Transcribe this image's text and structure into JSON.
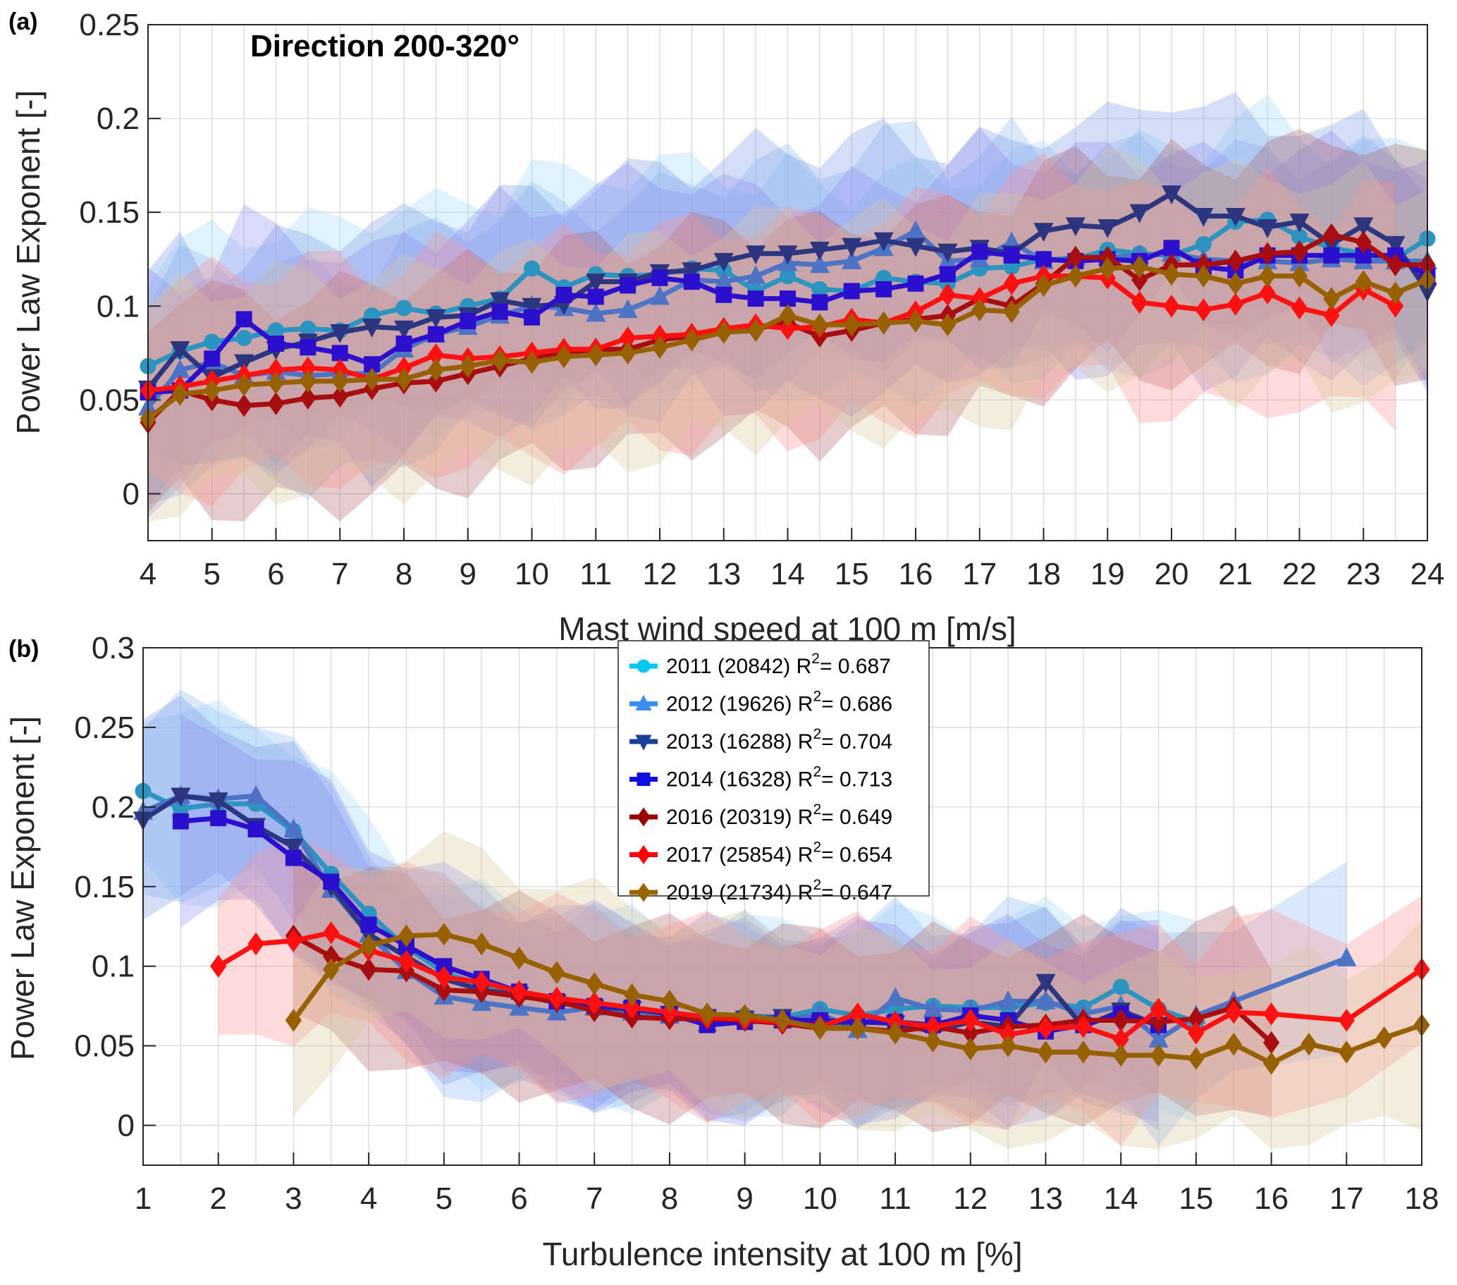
{
  "figure": {
    "panels": [
      {
        "id": "a",
        "label": "(a)"
      },
      {
        "id": "b",
        "label": "(b)"
      }
    ]
  },
  "chart_data": [
    {
      "type": "line",
      "panel_label": "(a)",
      "annotation": "Direction 200-320°",
      "title": "",
      "xlabel": "Mast wind speed at 100 m [m/s]",
      "ylabel": "Power Law Exponent [-]",
      "xlim": [
        4,
        24
      ],
      "ylim": [
        -0.025,
        0.25
      ],
      "xticks": [
        4,
        5,
        6,
        7,
        8,
        9,
        10,
        11,
        12,
        13,
        14,
        15,
        16,
        17,
        18,
        19,
        20,
        21,
        22,
        23,
        24
      ],
      "yticks": [
        0,
        0.05,
        0.1,
        0.15,
        0.2,
        0.25
      ],
      "ytick_labels": [
        "0",
        "0.05",
        "0.1",
        "0.15",
        "0.2",
        "0.25"
      ],
      "grid": true,
      "shaded_bands": true,
      "x": [
        4,
        4.5,
        5,
        5.5,
        6,
        6.5,
        7,
        7.5,
        8,
        8.5,
        9,
        9.5,
        10,
        10.5,
        11,
        11.5,
        12,
        12.5,
        13,
        13.5,
        14,
        14.5,
        15,
        15.5,
        16,
        16.5,
        17,
        17.5,
        18,
        18.5,
        19,
        19.5,
        20,
        20.5,
        21,
        21.5,
        22,
        22.5,
        23,
        23.5,
        24
      ],
      "series": [
        {
          "name": "2011",
          "color": "#2b94c0",
          "marker": "circle",
          "values": [
            0.068,
            0.076,
            0.081,
            0.083,
            0.087,
            0.088,
            0.087,
            0.095,
            0.099,
            0.096,
            0.1,
            0.104,
            0.12,
            0.11,
            0.117,
            0.116,
            0.117,
            0.12,
            0.119,
            0.108,
            0.116,
            0.109,
            0.108,
            0.115,
            0.113,
            0.112,
            0.12,
            0.121,
            0.125,
            0.125,
            0.13,
            0.128,
            0.127,
            0.133,
            0.145,
            0.146,
            0.137,
            0.131,
            0.128,
            0.125,
            0.136
          ]
        },
        {
          "name": "2012",
          "color": "#4d73c6",
          "marker": "triangle-up",
          "values": [
            0.046,
            0.066,
            0.07,
            0.063,
            0.065,
            0.063,
            0.064,
            0.064,
            0.077,
            0.085,
            0.089,
            0.095,
            0.1,
            0.099,
            0.096,
            0.098,
            0.105,
            0.114,
            0.113,
            0.116,
            0.123,
            0.122,
            0.124,
            0.131,
            0.14,
            0.124,
            0.125,
            0.134,
            0.124,
            0.126,
            0.126,
            0.127,
            0.128,
            0.125,
            0.124,
            0.124,
            0.123,
            0.125,
            0.124,
            0.124,
            0.124
          ]
        },
        {
          "name": "2013",
          "color": "#2c3580",
          "marker": "triangle-down",
          "values": [
            0.056,
            0.077,
            0.062,
            0.07,
            0.077,
            0.081,
            0.086,
            0.089,
            0.088,
            0.094,
            0.095,
            0.103,
            0.1,
            0.101,
            0.113,
            0.113,
            0.118,
            0.119,
            0.124,
            0.128,
            0.128,
            0.13,
            0.132,
            0.135,
            0.132,
            0.129,
            0.131,
            0.128,
            0.14,
            0.143,
            0.142,
            0.15,
            0.16,
            0.148,
            0.148,
            0.142,
            0.145,
            0.133,
            0.143,
            0.133,
            0.108
          ]
        },
        {
          "name": "2014",
          "color": "#2c0fcc",
          "marker": "square",
          "values": [
            0.054,
            0.055,
            0.072,
            0.093,
            0.08,
            0.078,
            0.075,
            0.069,
            0.08,
            0.085,
            0.092,
            0.097,
            0.094,
            0.106,
            0.105,
            0.111,
            0.115,
            0.113,
            0.106,
            0.104,
            0.104,
            0.102,
            0.108,
            0.109,
            0.112,
            0.117,
            0.129,
            0.127,
            0.125,
            0.124,
            0.125,
            0.124,
            0.131,
            0.121,
            0.119,
            0.127,
            0.127,
            0.127,
            0.127,
            0.127,
            0.116
          ]
        },
        {
          "name": "2016",
          "color": "#a80d10",
          "marker": "diamond",
          "values": [
            0.038,
            0.055,
            0.05,
            0.047,
            0.048,
            0.051,
            0.052,
            0.056,
            0.059,
            0.06,
            0.064,
            0.068,
            0.072,
            0.075,
            0.077,
            0.077,
            0.082,
            0.084,
            0.088,
            0.088,
            0.091,
            0.084,
            0.087,
            0.091,
            0.093,
            0.095,
            0.104,
            0.1,
            0.112,
            0.126,
            0.126,
            0.114,
            0.122,
            0.122,
            0.124,
            0.128,
            0.129,
            0.138,
            0.134,
            0.122,
            0.122
          ]
        },
        {
          "name": "2017",
          "color": "#ff1111",
          "marker": "diamond",
          "values": [
            0.055,
            0.057,
            0.06,
            0.063,
            0.066,
            0.067,
            0.066,
            0.061,
            0.067,
            0.074,
            0.072,
            0.073,
            0.075,
            0.077,
            0.077,
            0.083,
            0.084,
            0.085,
            0.088,
            0.09,
            0.088,
            0.089,
            0.093,
            0.091,
            0.097,
            0.106,
            0.104,
            0.112,
            0.116,
            0.116,
            0.115,
            0.102,
            0.1,
            0.098,
            0.101,
            0.107,
            0.099,
            0.095,
            0.109,
            0.1,
            null
          ]
        },
        {
          "name": "2019",
          "color": "#976000",
          "marker": "diamond",
          "values": [
            0.04,
            0.053,
            0.055,
            0.058,
            0.059,
            0.06,
            0.06,
            0.061,
            0.061,
            0.066,
            0.068,
            0.071,
            0.07,
            0.073,
            0.074,
            0.075,
            0.078,
            0.082,
            0.086,
            0.087,
            0.095,
            0.09,
            0.09,
            0.091,
            0.092,
            0.09,
            0.098,
            0.097,
            0.111,
            0.116,
            0.12,
            0.121,
            0.117,
            0.116,
            0.112,
            0.116,
            0.116,
            0.104,
            0.113,
            0.107,
            0.114
          ]
        }
      ]
    },
    {
      "type": "line",
      "panel_label": "(b)",
      "title": "",
      "xlabel": "Turbulence intensity at 100 m [%]",
      "ylabel": "Power Law Exponent [-]",
      "xlim": [
        1,
        18
      ],
      "ylim": [
        -0.025,
        0.3
      ],
      "xticks": [
        1,
        2,
        3,
        4,
        5,
        6,
        7,
        8,
        9,
        10,
        11,
        12,
        13,
        14,
        15,
        16,
        17,
        18
      ],
      "yticks": [
        0,
        0.05,
        0.1,
        0.15,
        0.2,
        0.25,
        0.3
      ],
      "ytick_labels": [
        "0",
        "0.05",
        "0.1",
        "0.15",
        "0.2",
        "0.25",
        "0.3"
      ],
      "grid": true,
      "shaded_bands": true,
      "legend_position": "top-center",
      "legend": [
        {
          "year": "2011",
          "count": "(20842)",
          "r2_prefix": "R",
          "r2_sup": "2",
          "r2_value": "= 0.687"
        },
        {
          "year": "2012",
          "count": "(19626)",
          "r2_prefix": "R",
          "r2_sup": "2",
          "r2_value": "= 0.686"
        },
        {
          "year": "2013",
          "count": "(16288)",
          "r2_prefix": "R",
          "r2_sup": "2",
          "r2_value": "= 0.704"
        },
        {
          "year": "2014",
          "count": "(16328)",
          "r2_prefix": "R",
          "r2_sup": "2",
          "r2_value": "= 0.713"
        },
        {
          "year": "2016",
          "count": "(20319)",
          "r2_prefix": "R",
          "r2_sup": "2",
          "r2_value": "= 0.649"
        },
        {
          "year": "2017",
          "count": "(25854)",
          "r2_prefix": "R",
          "r2_sup": "2",
          "r2_value": "= 0.654"
        },
        {
          "year": "2019",
          "count": "(21734)",
          "r2_prefix": "R",
          "r2_sup": "2",
          "r2_value": "= 0.647"
        }
      ],
      "legend_colors": [
        "#00c8f0",
        "#3b8ef0",
        "#1a3f99",
        "#1010e0",
        "#990000",
        "#ff0000",
        "#9a6400"
      ],
      "series": [
        {
          "name": "2011",
          "color": "#2b94c0",
          "marker": "circle",
          "x": [
            1,
            1.5,
            2,
            2.5,
            3,
            3.5,
            4,
            4.5,
            5,
            5.5,
            6,
            6.5,
            7,
            7.5,
            8,
            8.5,
            9,
            9.5,
            10,
            10.5,
            11,
            11.5,
            12,
            12.5,
            13,
            13.5,
            14,
            14.5,
            15
          ],
          "values": [
            0.21,
            0.199,
            0.202,
            0.202,
            0.185,
            0.158,
            0.133,
            0.112,
            0.096,
            0.088,
            0.082,
            0.078,
            0.074,
            0.073,
            0.07,
            0.068,
            0.069,
            0.068,
            0.073,
            0.069,
            0.073,
            0.075,
            0.074,
            0.074,
            0.077,
            0.074,
            0.087,
            0.073,
            0.065
          ]
        },
        {
          "name": "2012",
          "color": "#4d73c6",
          "marker": "triangle-up",
          "x": [
            1,
            1.5,
            2,
            2.5,
            3,
            3.5,
            4,
            4.5,
            5,
            5.5,
            6,
            6.5,
            7,
            7.5,
            8,
            8.5,
            9,
            9.5,
            10,
            10.5,
            11,
            11.5,
            12,
            12.5,
            13,
            13.5,
            14,
            14.5,
            15,
            15.5,
            17
          ],
          "values": [
            0.197,
            0.207,
            0.205,
            0.207,
            0.186,
            0.148,
            0.12,
            0.097,
            0.081,
            0.077,
            0.074,
            0.071,
            0.074,
            0.071,
            0.069,
            0.064,
            0.069,
            0.066,
            0.07,
            0.06,
            0.08,
            0.073,
            0.072,
            0.078,
            0.078,
            0.07,
            0.075,
            0.054,
            0.069,
            0.078,
            0.105
          ]
        },
        {
          "name": "2013",
          "color": "#2c3580",
          "marker": "triangle-down",
          "x": [
            1,
            1.5,
            2,
            2.5,
            3,
            3.5,
            4,
            4.5,
            5,
            5.5,
            6,
            6.5,
            7,
            7.5,
            8,
            8.5,
            9,
            9.5,
            10,
            10.5,
            11,
            11.5,
            12,
            12.5,
            13,
            13.5,
            14,
            14.5
          ],
          "values": [
            0.192,
            0.207,
            0.204,
            0.188,
            0.175,
            0.15,
            0.12,
            0.106,
            0.092,
            0.085,
            0.082,
            0.077,
            0.074,
            0.073,
            0.07,
            0.068,
            0.067,
            0.068,
            0.064,
            0.065,
            0.064,
            0.059,
            0.065,
            0.062,
            0.09,
            0.062,
            0.072,
            0.063
          ]
        },
        {
          "name": "2014",
          "color": "#2c0fcc",
          "marker": "square",
          "x": [
            1.5,
            2,
            2.5,
            3,
            3.5,
            4,
            4.5,
            5,
            5.5,
            6,
            6.5,
            7,
            7.5,
            8,
            8.5,
            9,
            9.5,
            10,
            10.5,
            11,
            11.5,
            12,
            12.5,
            13,
            13.5,
            14,
            14.5
          ],
          "values": [
            0.191,
            0.193,
            0.186,
            0.168,
            0.153,
            0.126,
            0.113,
            0.1,
            0.092,
            0.084,
            0.078,
            0.075,
            0.074,
            0.07,
            0.063,
            0.065,
            0.066,
            0.066,
            0.065,
            0.065,
            0.063,
            0.069,
            0.066,
            0.059,
            0.063,
            0.07,
            0.063
          ]
        },
        {
          "name": "2016",
          "color": "#a80d10",
          "marker": "diamond",
          "x": [
            3,
            3.5,
            4,
            4.5,
            5,
            5.5,
            6,
            6.5,
            7,
            7.5,
            8,
            8.5,
            9,
            9.5,
            10,
            10.5,
            11,
            11.5,
            12,
            12.5,
            13,
            13.5,
            14,
            14.5,
            15,
            15.5,
            16
          ],
          "values": [
            0.119,
            0.106,
            0.098,
            0.097,
            0.085,
            0.084,
            0.081,
            0.078,
            0.072,
            0.068,
            0.067,
            0.067,
            0.066,
            0.064,
            0.061,
            0.061,
            0.059,
            0.062,
            0.058,
            0.062,
            0.063,
            0.066,
            0.066,
            0.065,
            0.067,
            0.074,
            0.052
          ]
        },
        {
          "name": "2017",
          "color": "#ff1111",
          "marker": "diamond",
          "x": [
            2,
            2.5,
            3,
            3.5,
            4,
            4.5,
            5,
            5.5,
            6,
            6.5,
            7,
            7.5,
            8,
            8.5,
            9,
            9.5,
            10,
            10.5,
            11,
            11.5,
            12,
            12.5,
            13,
            13.5,
            14,
            14.5,
            15,
            15.5,
            16,
            17,
            18
          ],
          "values": [
            0.1,
            0.114,
            0.116,
            0.121,
            0.11,
            0.103,
            0.093,
            0.09,
            0.084,
            0.08,
            0.077,
            0.074,
            0.071,
            0.068,
            0.067,
            0.065,
            0.062,
            0.07,
            0.065,
            0.062,
            0.066,
            0.057,
            0.061,
            0.062,
            0.054,
            0.073,
            0.058,
            0.071,
            0.07,
            0.066,
            0.098
          ]
        },
        {
          "name": "2019",
          "color": "#976000",
          "marker": "diamond",
          "x": [
            3,
            3.5,
            4,
            4.5,
            5,
            5.5,
            6,
            6.5,
            7,
            7.5,
            8,
            8.5,
            9,
            9.5,
            10,
            10.5,
            11,
            11.5,
            12,
            12.5,
            13,
            13.5,
            14,
            14.5,
            15,
            15.5,
            16,
            16.5,
            17,
            17.5,
            18
          ],
          "values": [
            0.066,
            0.098,
            0.113,
            0.119,
            0.12,
            0.114,
            0.105,
            0.096,
            0.089,
            0.082,
            0.078,
            0.07,
            0.069,
            0.066,
            0.061,
            0.061,
            0.058,
            0.053,
            0.048,
            0.05,
            0.046,
            0.046,
            0.044,
            0.044,
            0.042,
            0.051,
            0.039,
            0.051,
            0.046,
            0.055,
            0.063
          ]
        }
      ]
    }
  ]
}
